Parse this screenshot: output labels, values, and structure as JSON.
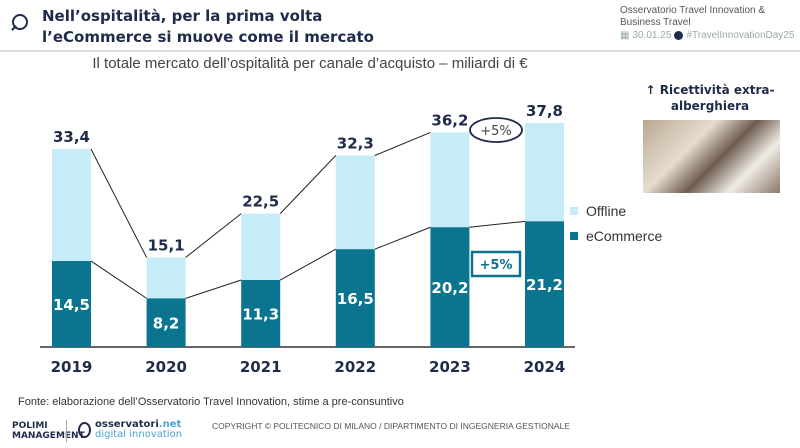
{
  "header": {
    "title": "Nell’ospitalità, per la prima volta l’eCommerce si muove come il mercato",
    "observatory": "Osservatorio Travel Innovation & Business Travel",
    "date": "30.01.25",
    "hashtag": "#TravelInnovationDay25"
  },
  "chart_data": {
    "type": "bar",
    "stacked": true,
    "title": "Il totale mercato dell’ospitalità per canale d’acquisto – miliardi di €",
    "categories": [
      "2019",
      "2020",
      "2021",
      "2022",
      "2023",
      "2024"
    ],
    "series": [
      {
        "name": "eCommerce",
        "values": [
          14.5,
          8.2,
          11.3,
          16.5,
          20.2,
          21.2
        ],
        "labels": [
          "14,5",
          "8,2",
          "11,3",
          "16,5",
          "20,2",
          "21,2"
        ],
        "color": "#0b7590"
      },
      {
        "name": "Offline",
        "values": [
          18.9,
          6.9,
          11.2,
          15.8,
          16.0,
          16.6
        ],
        "color": "#c6ecf8"
      }
    ],
    "totals": [
      33.4,
      15.1,
      22.5,
      32.3,
      36.2,
      37.8
    ],
    "total_labels": [
      "33,4",
      "15,1",
      "22,5",
      "32,3",
      "36,2",
      "37,8"
    ],
    "annotations": {
      "total_growth": "+5%",
      "ecommerce_growth": "+5%"
    },
    "ylim": [
      0,
      40
    ],
    "grid": false,
    "legend": "right"
  },
  "side": {
    "title": "↑ Ricettività extra-alberghiera"
  },
  "footer": {
    "source": "Fonte: elaborazione dell’Osservatorio Travel Innovation, stime a pre-consuntivo",
    "polimi": "POLIMI MANAGEMENT",
    "osservatori": "osservatori",
    "osservatori_net": ".net",
    "digital": "digital innovation",
    "copyright": "COPYRIGHT © POLITECNICO DI MILANO / DIPARTIMENTO DI INGEGNERIA GESTIONALE"
  }
}
